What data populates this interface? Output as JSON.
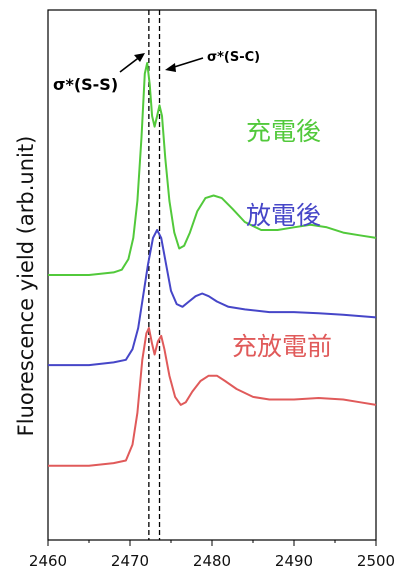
{
  "chart_data": {
    "type": "line",
    "title": "",
    "xlabel": "",
    "ylabel": "Fluorescence yield (arb.unit)",
    "xlim": [
      2460,
      2500
    ],
    "x_ticks": [
      "2460",
      "2470",
      "2480",
      "2490",
      "2500"
    ],
    "grid": false,
    "series": [
      {
        "name": "充電後",
        "color": "#52c93b",
        "points": [
          [
            2460,
            0.5
          ],
          [
            2465,
            0.5
          ],
          [
            2468,
            0.505
          ],
          [
            2469,
            0.51
          ],
          [
            2469.8,
            0.53
          ],
          [
            2470.4,
            0.57
          ],
          [
            2470.9,
            0.64
          ],
          [
            2471.4,
            0.76
          ],
          [
            2471.8,
            0.88
          ],
          [
            2472.1,
            0.9
          ],
          [
            2472.4,
            0.86
          ],
          [
            2472.7,
            0.8
          ],
          [
            2473.0,
            0.78
          ],
          [
            2473.3,
            0.8
          ],
          [
            2473.6,
            0.82
          ],
          [
            2473.9,
            0.8
          ],
          [
            2474.3,
            0.72
          ],
          [
            2474.8,
            0.64
          ],
          [
            2475.4,
            0.58
          ],
          [
            2476.0,
            0.55
          ],
          [
            2476.6,
            0.555
          ],
          [
            2477.3,
            0.58
          ],
          [
            2478.2,
            0.62
          ],
          [
            2479.2,
            0.645
          ],
          [
            2480.2,
            0.65
          ],
          [
            2481.2,
            0.645
          ],
          [
            2482.5,
            0.625
          ],
          [
            2484,
            0.6
          ],
          [
            2486,
            0.585
          ],
          [
            2488,
            0.585
          ],
          [
            2490,
            0.59
          ],
          [
            2492,
            0.595
          ],
          [
            2494,
            0.59
          ],
          [
            2496,
            0.58
          ],
          [
            2498,
            0.575
          ],
          [
            2500,
            0.57
          ]
        ]
      },
      {
        "name": "放電後",
        "color": "#4646c8",
        "points": [
          [
            2460,
            0.33
          ],
          [
            2465,
            0.33
          ],
          [
            2468,
            0.335
          ],
          [
            2469.5,
            0.34
          ],
          [
            2470.3,
            0.36
          ],
          [
            2471.0,
            0.4
          ],
          [
            2471.6,
            0.46
          ],
          [
            2472.2,
            0.52
          ],
          [
            2472.8,
            0.57
          ],
          [
            2473.3,
            0.585
          ],
          [
            2473.8,
            0.57
          ],
          [
            2474.4,
            0.52
          ],
          [
            2475.0,
            0.47
          ],
          [
            2475.7,
            0.445
          ],
          [
            2476.4,
            0.44
          ],
          [
            2477.2,
            0.45
          ],
          [
            2478.0,
            0.46
          ],
          [
            2478.8,
            0.465
          ],
          [
            2479.6,
            0.46
          ],
          [
            2480.6,
            0.45
          ],
          [
            2482,
            0.44
          ],
          [
            2484,
            0.435
          ],
          [
            2487,
            0.43
          ],
          [
            2490,
            0.43
          ],
          [
            2493,
            0.428
          ],
          [
            2496,
            0.425
          ],
          [
            2500,
            0.42
          ]
        ]
      },
      {
        "name": "充放電前",
        "color": "#e05a5a",
        "points": [
          [
            2460,
            0.14
          ],
          [
            2465,
            0.14
          ],
          [
            2468,
            0.145
          ],
          [
            2469.5,
            0.15
          ],
          [
            2470.3,
            0.18
          ],
          [
            2470.9,
            0.24
          ],
          [
            2471.5,
            0.34
          ],
          [
            2472.0,
            0.39
          ],
          [
            2472.3,
            0.4
          ],
          [
            2472.7,
            0.37
          ],
          [
            2473.0,
            0.35
          ],
          [
            2473.4,
            0.375
          ],
          [
            2473.8,
            0.385
          ],
          [
            2474.2,
            0.36
          ],
          [
            2474.8,
            0.31
          ],
          [
            2475.5,
            0.27
          ],
          [
            2476.2,
            0.255
          ],
          [
            2476.8,
            0.26
          ],
          [
            2477.6,
            0.28
          ],
          [
            2478.6,
            0.3
          ],
          [
            2479.6,
            0.31
          ],
          [
            2480.6,
            0.31
          ],
          [
            2481.6,
            0.3
          ],
          [
            2483,
            0.285
          ],
          [
            2485,
            0.27
          ],
          [
            2487,
            0.265
          ],
          [
            2490,
            0.265
          ],
          [
            2493,
            0.268
          ],
          [
            2496,
            0.265
          ],
          [
            2498,
            0.26
          ],
          [
            2500,
            0.255
          ]
        ]
      }
    ],
    "reference_lines": [
      {
        "x": 2472.3,
        "style": "dashed"
      },
      {
        "x": 2473.6,
        "style": "dashed"
      }
    ],
    "annotations": [
      {
        "text": "σ*(S-S)",
        "style": "large"
      },
      {
        "text": "σ*(S-C)",
        "style": "small"
      }
    ]
  }
}
